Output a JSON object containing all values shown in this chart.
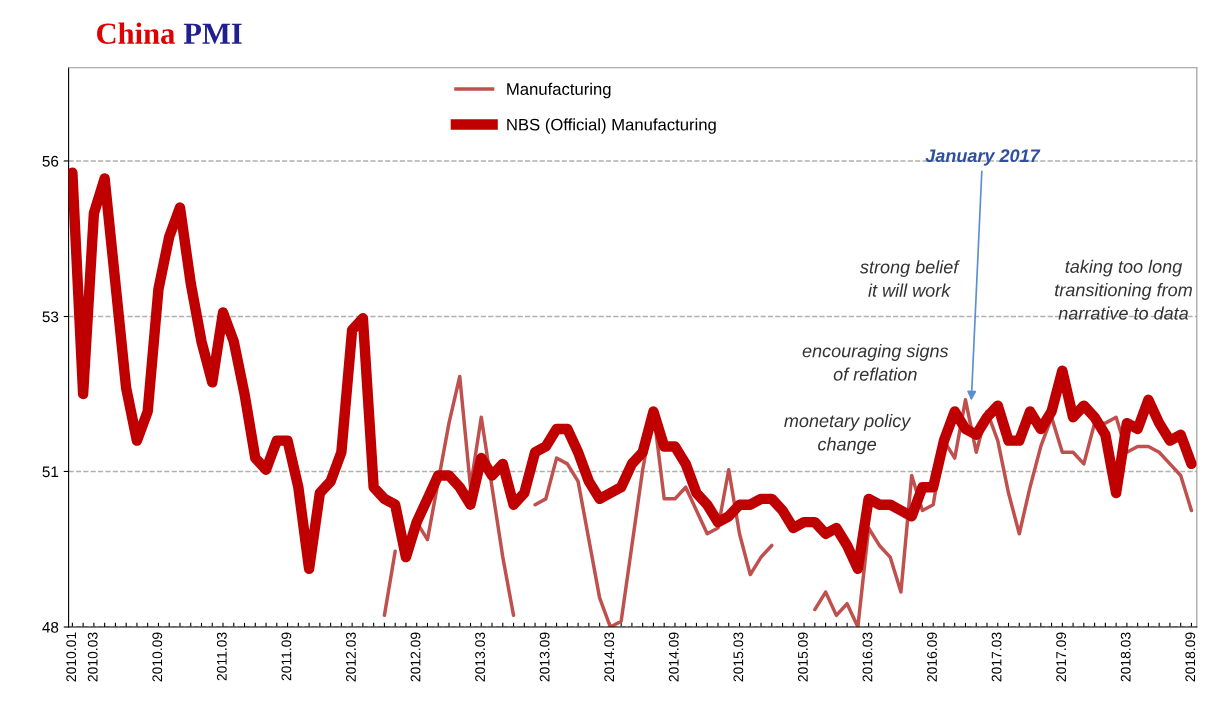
{
  "chart_data": {
    "type": "line",
    "title": "China PMI",
    "categories": [
      "2010.01",
      null,
      "2010.03",
      null,
      null,
      null,
      null,
      null,
      "2010.09",
      null,
      null,
      null,
      null,
      null,
      "2011.03",
      null,
      null,
      null,
      null,
      null,
      "2011.09",
      null,
      null,
      null,
      null,
      null,
      "2012.03",
      null,
      null,
      null,
      null,
      null,
      "2012.09",
      null,
      null,
      null,
      null,
      null,
      "2013.03",
      null,
      null,
      null,
      null,
      null,
      "2013.09",
      null,
      null,
      null,
      null,
      null,
      "2014.03",
      null,
      null,
      null,
      null,
      null,
      "2014.09",
      null,
      null,
      null,
      null,
      null,
      "2015.03",
      null,
      null,
      null,
      null,
      null,
      "2015.09",
      null,
      null,
      null,
      null,
      null,
      "2016.03",
      null,
      null,
      null,
      null,
      null,
      "2016.09",
      null,
      null,
      null,
      null,
      null,
      "2017.03",
      null,
      null,
      null,
      null,
      null,
      "2017.09",
      null,
      null,
      null,
      null,
      null,
      "2018.03",
      null,
      null,
      null,
      null,
      null,
      "2018.09"
    ],
    "series": [
      {
        "name": "Manufacturing",
        "color": "#c0504d",
        "values": [
          null,
          null,
          null,
          null,
          null,
          null,
          null,
          null,
          null,
          null,
          null,
          null,
          null,
          null,
          null,
          null,
          null,
          null,
          null,
          null,
          null,
          null,
          null,
          null,
          null,
          null,
          null,
          null,
          null,
          48.2,
          49.3,
          null,
          49.8,
          49.5,
          50.5,
          51.5,
          52.3,
          50.4,
          51.6,
          50.4,
          49.2,
          48.2,
          null,
          50.1,
          50.2,
          50.9,
          50.8,
          50.5,
          49.5,
          48.5,
          48.0,
          48.1,
          49.4,
          50.7,
          51.7,
          50.2,
          50.2,
          50.4,
          50.0,
          49.6,
          49.7,
          50.7,
          49.6,
          48.9,
          49.2,
          49.4,
          null,
          null,
          null,
          48.3,
          48.6,
          48.2,
          48.4,
          48.0,
          49.7,
          49.4,
          49.2,
          48.6,
          50.6,
          50.0,
          50.1,
          51.2,
          50.9,
          51.9,
          51.0,
          51.7,
          51.2,
          50.3,
          49.6,
          50.4,
          51.1,
          51.6,
          51.0,
          51.0,
          50.8,
          51.5,
          51.5,
          51.6,
          51.0,
          51.1,
          51.1,
          51.0,
          50.8,
          50.6,
          50.0
        ]
      },
      {
        "name": "NBS (Official) Manufacturing",
        "color": "#c00000",
        "values": [
          55.8,
          52.0,
          55.1,
          55.7,
          53.9,
          52.1,
          51.2,
          51.7,
          53.8,
          54.7,
          55.2,
          53.9,
          52.9,
          52.2,
          53.4,
          52.9,
          52.0,
          50.9,
          50.7,
          51.2,
          51.2,
          50.4,
          49.0,
          50.3,
          50.5,
          51.0,
          53.1,
          53.3,
          50.4,
          50.2,
          50.1,
          49.2,
          49.8,
          50.2,
          50.6,
          50.6,
          50.4,
          50.1,
          50.9,
          50.6,
          50.8,
          50.1,
          50.3,
          51.0,
          51.1,
          51.4,
          51.4,
          51.0,
          50.5,
          50.2,
          50.3,
          50.4,
          50.8,
          51.0,
          51.7,
          51.1,
          51.1,
          50.8,
          50.3,
          50.1,
          49.8,
          49.9,
          50.1,
          50.1,
          50.2,
          50.2,
          50.0,
          49.7,
          49.8,
          49.8,
          49.6,
          49.7,
          49.4,
          49.0,
          50.2,
          50.1,
          50.1,
          50.0,
          49.9,
          50.4,
          50.4,
          51.2,
          51.7,
          51.4,
          51.3,
          51.6,
          51.8,
          51.2,
          51.2,
          51.7,
          51.4,
          51.7,
          52.4,
          51.6,
          51.8,
          51.6,
          51.3,
          50.3,
          51.5,
          51.4,
          51.9,
          51.5,
          51.2,
          51.3,
          50.8
        ]
      }
    ],
    "ylim": [
      48,
      57.6
    ],
    "yticks": [
      48,
      {
        "value": 50.67,
        "label": "51"
      },
      {
        "value": 53.33,
        "label": "53"
      },
      56
    ],
    "grid": "y",
    "legend": "top",
    "marker": "none",
    "line_style": "solid",
    "annotations": [
      "January 2017",
      "strong belief\nit will work",
      "encouraging signs\nof reflation",
      "monetary policy\nchange",
      "taking too long\ntransitioning from\nnarrative to data"
    ]
  }
}
